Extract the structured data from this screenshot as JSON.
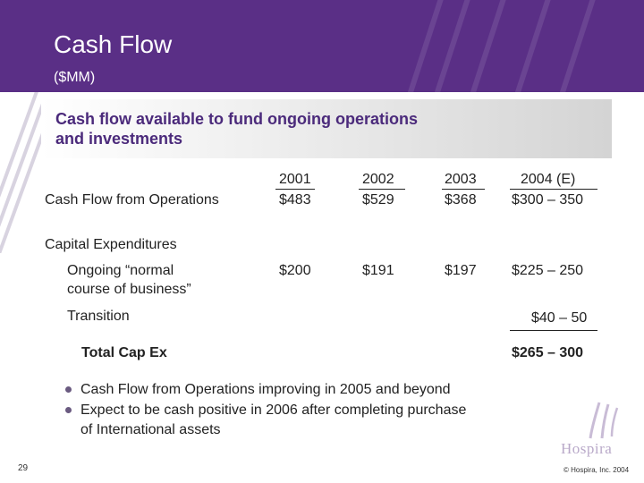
{
  "slide": {
    "title": "Cash Flow",
    "subtitle": "($MM)",
    "banner": {
      "line1": "Cash flow available to fund ongoing operations",
      "line2": "and investments"
    },
    "table": {
      "years": [
        "2001",
        "2002",
        "2003",
        "2004 (E)"
      ],
      "cfo_label": "Cash Flow from Operations",
      "cfo_values": [
        "$483",
        "$529",
        "$368",
        "$300 – 350"
      ],
      "capex_label": "Capital Expenditures",
      "ongoing_label_line1": "Ongoing “normal",
      "ongoing_label_line2": "course of business”",
      "ongoing_values": [
        "$200",
        "$191",
        "$197",
        "$225 – 250"
      ],
      "transition_label": "Transition",
      "transition_value": "$40 – 50",
      "total_label": "Total Cap Ex",
      "total_value": "$265 – 300"
    },
    "bullets": [
      {
        "line1": "Cash Flow from Operations improving in 2005 and beyond",
        "line2": ""
      },
      {
        "line1": "Expect to be cash positive in 2006 after completing purchase",
        "line2": "of International assets"
      }
    ],
    "page_number": "29",
    "copyright": "© Hospira, Inc. 2004",
    "logo_text": "Hospira",
    "colors": {
      "header": "#5a2f86",
      "banner_text": "#4b2a7b",
      "logo": "#b9a9c9"
    }
  }
}
